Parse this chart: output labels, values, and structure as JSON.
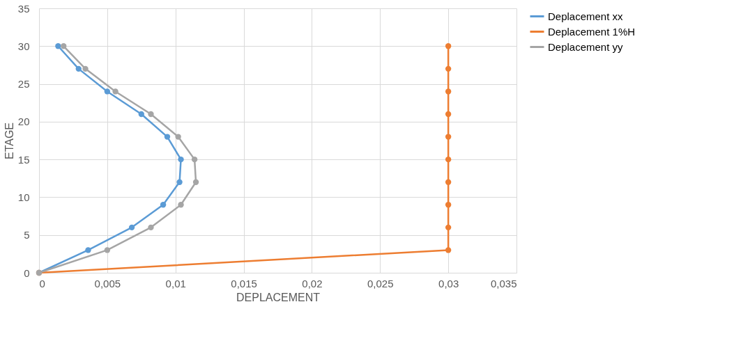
{
  "chart_data": {
    "type": "line",
    "xlabel": "DEPLACEMENT",
    "ylabel": "ETAGE",
    "series": [
      {
        "name": "Deplacement xx",
        "color": "#5b9bd5",
        "x": [
          0,
          0.0036,
          0.0068,
          0.0091,
          0.0103,
          0.0104,
          0.0094,
          0.0075,
          0.005,
          0.0029,
          0.0014
        ],
        "values": [
          0,
          3,
          6,
          9,
          12,
          15,
          18,
          21,
          24,
          27,
          30
        ]
      },
      {
        "name": "Deplacement 1%H",
        "color": "#ed7d31",
        "x": [
          0,
          0.03,
          0.03,
          0.03,
          0.03,
          0.03,
          0.03,
          0.03,
          0.03,
          0.03,
          0.03
        ],
        "values": [
          0,
          3,
          6,
          9,
          12,
          15,
          18,
          21,
          24,
          27,
          30
        ]
      },
      {
        "name": "Deplacement yy",
        "color": "#a5a5a5",
        "x": [
          0,
          0.005,
          0.0082,
          0.0104,
          0.0115,
          0.0114,
          0.0102,
          0.0082,
          0.0056,
          0.0034,
          0.0018
        ],
        "values": [
          0,
          3,
          6,
          9,
          12,
          15,
          18,
          21,
          24,
          27,
          30
        ]
      }
    ],
    "xlim": [
      0,
      0.035
    ],
    "xticks": [
      {
        "value": 0,
        "label": "0"
      },
      {
        "value": 0.005,
        "label": "0,005"
      },
      {
        "value": 0.01,
        "label": "0,01"
      },
      {
        "value": 0.015,
        "label": "0,015"
      },
      {
        "value": 0.02,
        "label": "0,02"
      },
      {
        "value": 0.025,
        "label": "0,025"
      },
      {
        "value": 0.03,
        "label": "0,03"
      },
      {
        "value": 0.035,
        "label": "0,035"
      }
    ],
    "ylim": [
      0,
      35
    ],
    "yticks": [
      0,
      5,
      10,
      15,
      20,
      25,
      30,
      35
    ],
    "grid": true,
    "legend": "right",
    "marker": "circle",
    "line_style": "solid"
  }
}
